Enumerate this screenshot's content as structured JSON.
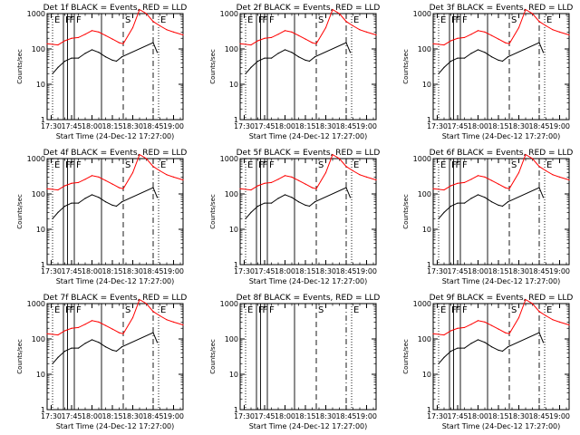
{
  "figure": {
    "panels": [
      {
        "title": "Det 1f BLACK = Events, RED = LLD",
        "has_data": true
      },
      {
        "title": "Det 2f BLACK = Events, RED = LLD",
        "has_data": true
      },
      {
        "title": "Det 3f BLACK = Events, RED = LLD",
        "has_data": true
      },
      {
        "title": "Det 4f BLACK = Events, RED = LLD",
        "has_data": true
      },
      {
        "title": "Det 5f BLACK = Events, RED = LLD",
        "has_data": true
      },
      {
        "title": "Det 6f BLACK = Events, RED = LLD",
        "has_data": true
      },
      {
        "title": "Det 7f BLACK = Events, RED = LLD",
        "has_data": true
      },
      {
        "title": "Det 8f BLACK = Events, RED = LLD",
        "has_data": false
      },
      {
        "title": "Det 9f BLACK = Events, RED = LLD",
        "has_data": true
      }
    ],
    "xlabel": "Start Time (24-Dec-12 17:27:00)",
    "ylabel": "Counts/sec",
    "xticks": [
      "17:30",
      "17:45",
      "18:00",
      "18:15",
      "18:30",
      "18:45",
      "19:00"
    ],
    "yticks": [
      "1",
      "10",
      "100",
      "1000"
    ],
    "colors": {
      "events": "#000000",
      "lld": "#ff0000"
    }
  },
  "chart_data": {
    "type": "line",
    "x_unit": "time (HH:MM, 24-Dec-12)",
    "y_scale": "log",
    "xlim": [
      "17:27",
      "19:07"
    ],
    "ylim": [
      1,
      1000
    ],
    "markers": [
      {
        "label": "E",
        "time": "17:31",
        "style": "dotted"
      },
      {
        "label": "F",
        "time": "17:39",
        "style": "solid"
      },
      {
        "label": "F",
        "time": "17:42",
        "style": "solid"
      },
      {
        "label": "F",
        "time": "17:47",
        "style": "solid"
      },
      {
        "label": "",
        "time": "18:07",
        "style": "solid"
      },
      {
        "label": "S",
        "time": "18:23",
        "style": "dashed"
      },
      {
        "label": "",
        "time": "18:45",
        "style": "dashdot"
      },
      {
        "label": "E",
        "time": "18:49",
        "style": "dotted"
      }
    ],
    "series": [
      {
        "name": "Events",
        "color": "#000000",
        "x": [
          "17:31",
          "17:35",
          "17:40",
          "17:45",
          "17:50",
          "17:55",
          "18:00",
          "18:05",
          "18:10",
          "18:15",
          "18:18",
          "18:22",
          "18:45",
          "18:48"
        ],
        "y": [
          20,
          30,
          45,
          55,
          55,
          75,
          95,
          80,
          60,
          48,
          45,
          60,
          150,
          80
        ]
      },
      {
        "name": "LLD",
        "color": "#ff0000",
        "x": [
          "17:27",
          "17:35",
          "17:40",
          "17:45",
          "17:50",
          "17:55",
          "18:00",
          "18:05",
          "18:10",
          "18:15",
          "18:20",
          "18:23",
          "18:30",
          "18:35",
          "18:40",
          "18:45",
          "18:50",
          "18:55",
          "19:00",
          "19:07"
        ],
        "y": [
          140,
          130,
          170,
          200,
          210,
          260,
          330,
          300,
          240,
          190,
          150,
          140,
          400,
          1300,
          1000,
          600,
          450,
          350,
          300,
          250
        ]
      }
    ]
  }
}
